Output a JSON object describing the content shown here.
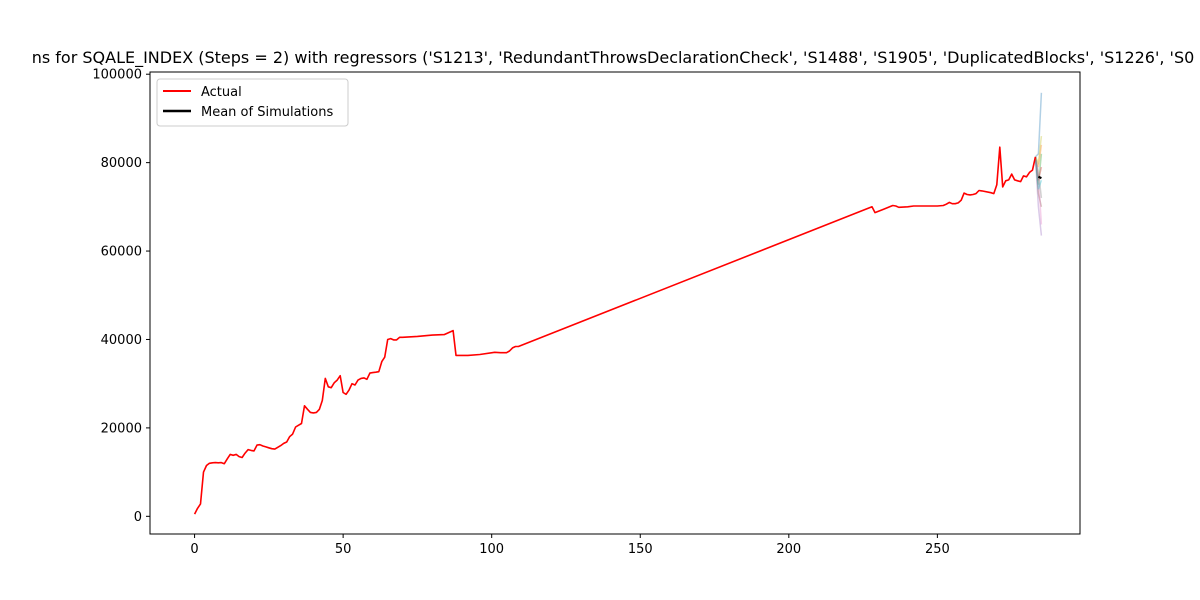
{
  "chart_data": {
    "type": "line",
    "title": "ns for SQALE_INDEX (Steps = 2) with regressors ('S1213', 'RedundantThrowsDeclarationCheck', 'S1488', 'S1905', 'DuplicatedBlocks', 'S1226', 'S0",
    "xlabel": "",
    "ylabel": "",
    "xlim": [
      -15,
      298
    ],
    "ylim": [
      -4000,
      100500
    ],
    "xticks": [
      0,
      50,
      100,
      150,
      200,
      250
    ],
    "yticks": [
      0,
      20000,
      40000,
      60000,
      80000,
      100000
    ],
    "grid": false,
    "legend_position": "upper left",
    "series": [
      {
        "name": "Actual",
        "color": "#ff0000",
        "points": [
          [
            0,
            500
          ],
          [
            1,
            1800
          ],
          [
            2,
            2800
          ],
          [
            3,
            10000
          ],
          [
            4,
            11500
          ],
          [
            5,
            12000
          ],
          [
            6,
            12100
          ],
          [
            7,
            12150
          ],
          [
            8,
            12100
          ],
          [
            9,
            12150
          ],
          [
            10,
            11900
          ],
          [
            11,
            13000
          ],
          [
            12,
            14000
          ],
          [
            13,
            13800
          ],
          [
            14,
            14000
          ],
          [
            15,
            13500
          ],
          [
            16,
            13300
          ],
          [
            17,
            14300
          ],
          [
            18,
            15100
          ],
          [
            19,
            14900
          ],
          [
            20,
            14800
          ],
          [
            21,
            16100
          ],
          [
            22,
            16200
          ],
          [
            23,
            15900
          ],
          [
            24,
            15700
          ],
          [
            25,
            15500
          ],
          [
            26,
            15300
          ],
          [
            27,
            15200
          ],
          [
            28,
            15600
          ],
          [
            29,
            16000
          ],
          [
            30,
            16500
          ],
          [
            31,
            16800
          ],
          [
            32,
            18000
          ],
          [
            33,
            18600
          ],
          [
            34,
            20200
          ],
          [
            35,
            20600
          ],
          [
            36,
            21000
          ],
          [
            37,
            25000
          ],
          [
            38,
            24200
          ],
          [
            39,
            23500
          ],
          [
            40,
            23400
          ],
          [
            41,
            23500
          ],
          [
            42,
            24200
          ],
          [
            43,
            26200
          ],
          [
            44,
            31200
          ],
          [
            45,
            29300
          ],
          [
            46,
            29100
          ],
          [
            47,
            30200
          ],
          [
            48,
            30800
          ],
          [
            49,
            31800
          ],
          [
            50,
            28000
          ],
          [
            51,
            27600
          ],
          [
            52,
            28600
          ],
          [
            53,
            30000
          ],
          [
            54,
            29700
          ],
          [
            55,
            30800
          ],
          [
            56,
            31200
          ],
          [
            57,
            31300
          ],
          [
            58,
            31000
          ],
          [
            59,
            32400
          ],
          [
            60,
            32500
          ],
          [
            61,
            32600
          ],
          [
            62,
            32700
          ],
          [
            63,
            35000
          ],
          [
            64,
            36000
          ],
          [
            65,
            40000
          ],
          [
            66,
            40200
          ],
          [
            67,
            39900
          ],
          [
            68,
            39900
          ],
          [
            69,
            40500
          ],
          [
            70,
            40500
          ],
          [
            75,
            40700
          ],
          [
            80,
            41000
          ],
          [
            84,
            41100
          ],
          [
            87,
            42000
          ],
          [
            88,
            36400
          ],
          [
            92,
            36400
          ],
          [
            96,
            36600
          ],
          [
            101,
            37100
          ],
          [
            103,
            37000
          ],
          [
            105,
            37000
          ],
          [
            106,
            37400
          ],
          [
            107,
            38100
          ],
          [
            108,
            38400
          ],
          [
            109,
            38400
          ],
          [
            228,
            70000
          ],
          [
            229,
            68700
          ],
          [
            232,
            69500
          ],
          [
            235,
            70300
          ],
          [
            236,
            70200
          ],
          [
            237,
            69900
          ],
          [
            240,
            70000
          ],
          [
            242,
            70200
          ],
          [
            246,
            70200
          ],
          [
            250,
            70200
          ],
          [
            252,
            70300
          ],
          [
            253,
            70600
          ],
          [
            254,
            71000
          ],
          [
            255,
            70700
          ],
          [
            256,
            70700
          ],
          [
            257,
            70900
          ],
          [
            258,
            71500
          ],
          [
            259,
            73100
          ],
          [
            260,
            72800
          ],
          [
            261,
            72700
          ],
          [
            262,
            72800
          ],
          [
            263,
            73000
          ],
          [
            264,
            73700
          ],
          [
            265,
            73600
          ],
          [
            268,
            73200
          ],
          [
            269,
            73000
          ],
          [
            270,
            75000
          ],
          [
            271,
            83500
          ],
          [
            272,
            74500
          ],
          [
            273,
            75900
          ],
          [
            274,
            76100
          ],
          [
            275,
            77400
          ],
          [
            276,
            76100
          ],
          [
            277,
            75900
          ],
          [
            278,
            75700
          ],
          [
            279,
            77000
          ],
          [
            280,
            76800
          ],
          [
            281,
            77800
          ],
          [
            282,
            78300
          ],
          [
            283,
            81300
          ]
        ]
      },
      {
        "name": "Mean of Simulations",
        "color": "#000000",
        "points": [
          [
            284,
            76800
          ],
          [
            285,
            76500
          ]
        ]
      }
    ],
    "simulations": [
      {
        "color": "#1f77b4",
        "points": [
          [
            283,
            81300
          ],
          [
            284,
            82000
          ],
          [
            285,
            95800
          ]
        ]
      },
      {
        "color": "#ff7f0e",
        "points": [
          [
            283,
            81300
          ],
          [
            284,
            79000
          ],
          [
            285,
            84000
          ]
        ]
      },
      {
        "color": "#2ca02c",
        "points": [
          [
            283,
            81300
          ],
          [
            284,
            75000
          ],
          [
            285,
            82000
          ]
        ]
      },
      {
        "color": "#d62728",
        "points": [
          [
            283,
            81300
          ],
          [
            284,
            76000
          ],
          [
            285,
            79000
          ]
        ]
      },
      {
        "color": "#9467bd",
        "points": [
          [
            283,
            81300
          ],
          [
            284,
            70000
          ],
          [
            285,
            63500
          ]
        ]
      },
      {
        "color": "#8c564b",
        "points": [
          [
            283,
            81300
          ],
          [
            284,
            73000
          ],
          [
            285,
            70000
          ]
        ]
      },
      {
        "color": "#e377c2",
        "points": [
          [
            283,
            81300
          ],
          [
            284,
            77000
          ],
          [
            285,
            66000
          ]
        ]
      },
      {
        "color": "#7f7f7f",
        "points": [
          [
            283,
            81300
          ],
          [
            284,
            78000
          ],
          [
            285,
            72000
          ]
        ]
      },
      {
        "color": "#bcbd22",
        "points": [
          [
            283,
            81300
          ],
          [
            284,
            80000
          ],
          [
            285,
            86000
          ]
        ]
      },
      {
        "color": "#17becf",
        "points": [
          [
            283,
            81300
          ],
          [
            284,
            74000
          ],
          [
            285,
            76000
          ]
        ]
      }
    ]
  }
}
